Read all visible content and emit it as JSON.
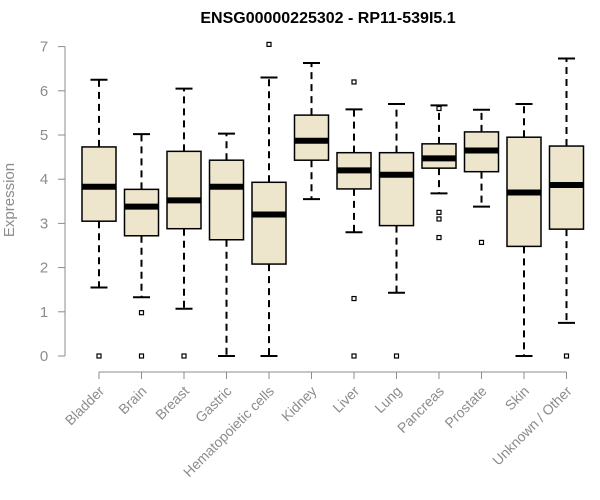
{
  "chart_data": {
    "type": "boxplot",
    "title": "ENSG00000225302 - RP11-539I5.1",
    "xlabel": "",
    "ylabel": "Expression",
    "ylim": [
      0,
      7
    ],
    "yticks": [
      0,
      1,
      2,
      3,
      4,
      5,
      6,
      7
    ],
    "grid": false,
    "categories": [
      "Bladder",
      "Brain",
      "Breast",
      "Gastric",
      "Hematopoietic cells",
      "Kidney",
      "Liver",
      "Lung",
      "Pancreas",
      "Prostate",
      "Skin",
      "Unknown / Other"
    ],
    "boxes": [
      {
        "whisker_low": 1.55,
        "q1": 3.05,
        "median": 3.83,
        "q3": 4.73,
        "whisker_high": 6.25,
        "outliers": [
          0
        ]
      },
      {
        "whisker_low": 1.33,
        "q1": 2.72,
        "median": 3.38,
        "q3": 3.77,
        "whisker_high": 5.02,
        "outliers": [
          0.98,
          0
        ]
      },
      {
        "whisker_low": 1.07,
        "q1": 2.88,
        "median": 3.52,
        "q3": 4.63,
        "whisker_high": 6.05,
        "outliers": [
          0
        ]
      },
      {
        "whisker_low": 0,
        "q1": 2.63,
        "median": 3.83,
        "q3": 4.43,
        "whisker_high": 5.03,
        "outliers": []
      },
      {
        "whisker_low": 0,
        "q1": 2.08,
        "median": 3.2,
        "q3": 3.93,
        "whisker_high": 6.3,
        "outliers": [
          7.05
        ]
      },
      {
        "whisker_low": 3.55,
        "q1": 4.43,
        "median": 4.87,
        "q3": 5.45,
        "whisker_high": 6.63,
        "outliers": []
      },
      {
        "whisker_low": 2.8,
        "q1": 3.78,
        "median": 4.2,
        "q3": 4.6,
        "whisker_high": 5.58,
        "outliers": [
          6.2,
          1.3,
          0
        ]
      },
      {
        "whisker_low": 1.43,
        "q1": 2.95,
        "median": 4.1,
        "q3": 4.6,
        "whisker_high": 5.7,
        "outliers": [
          0
        ]
      },
      {
        "whisker_low": 3.68,
        "q1": 4.25,
        "median": 4.47,
        "q3": 4.8,
        "whisker_high": 5.67,
        "outliers": [
          5.6,
          3.25,
          3.1,
          2.68
        ]
      },
      {
        "whisker_low": 3.38,
        "q1": 4.17,
        "median": 4.65,
        "q3": 5.07,
        "whisker_high": 5.57,
        "outliers": [
          2.57
        ]
      },
      {
        "whisker_low": 0,
        "q1": 2.48,
        "median": 3.7,
        "q3": 4.95,
        "whisker_high": 5.7,
        "outliers": []
      },
      {
        "whisker_low": 0.75,
        "q1": 2.87,
        "median": 3.87,
        "q3": 4.75,
        "whisker_high": 6.73,
        "outliers": [
          0
        ]
      }
    ],
    "colors": {
      "box_fill": "#ede6cd",
      "box_stroke": "#000000",
      "axis": "#8c8c8c",
      "title": "#000000"
    }
  }
}
